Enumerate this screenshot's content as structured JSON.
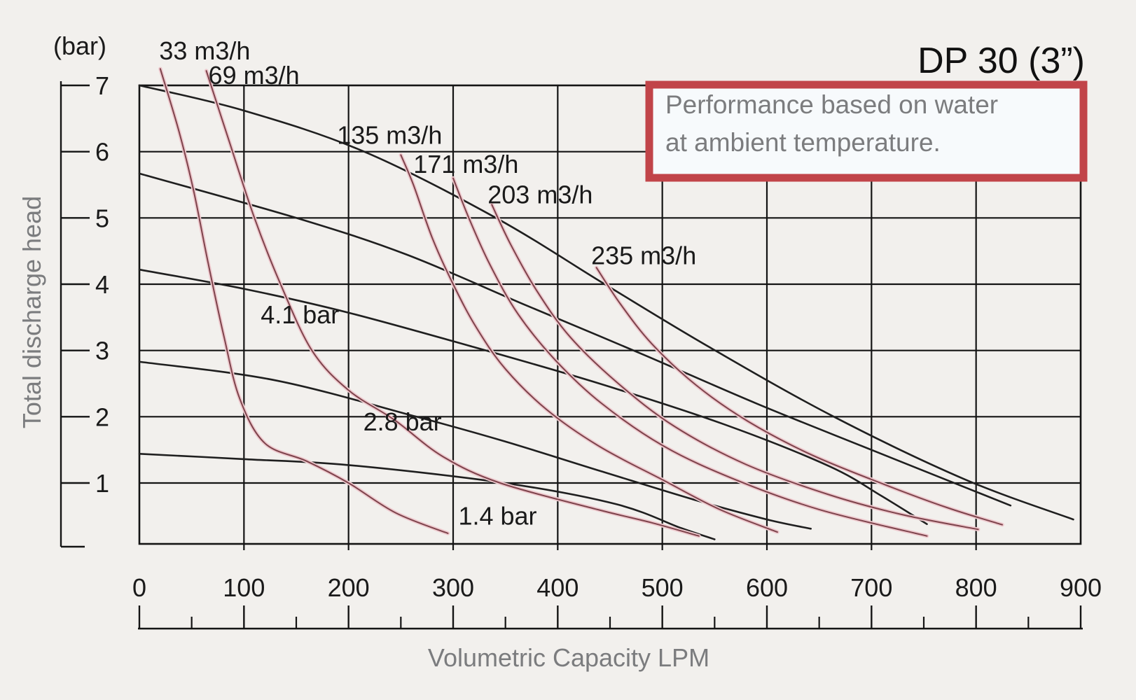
{
  "page": {
    "title": "DP 30 (3”)"
  },
  "note": {
    "lines": [
      "Performance based on water",
      "at ambient temperature."
    ]
  },
  "colors": {
    "background": "#f2f0ed",
    "grid": "#141414",
    "black_curve": "#1f1f1f",
    "red_curve_core": "#7d434b",
    "red_curve_halo": "#eec9ce",
    "note_border": "#c14449",
    "note_fill": "#f7fafc",
    "gray_text": "#7b7c7e",
    "label_text": "#1a1a1a"
  },
  "chart_data": {
    "type": "line",
    "title": "DP 30 (3”)",
    "xlabel": "Volumetric Capacity LPM",
    "ylabel": "Total discharge head",
    "y_unit_label": "(bar)",
    "xlim": [
      0,
      900
    ],
    "ylim": [
      0,
      7
    ],
    "grid": true,
    "x_ticks": [
      0,
      100,
      200,
      300,
      400,
      500,
      600,
      700,
      800,
      900
    ],
    "x_minor_ticks": [
      50,
      150,
      250,
      350,
      450,
      550,
      650,
      750,
      850
    ],
    "y_ticks": [
      1,
      2,
      3,
      4,
      5,
      6,
      7
    ],
    "series": [
      {
        "id": "pressure-6-9",
        "group": "air-inlet-pressure",
        "label": "",
        "color": "black",
        "points": [
          [
            0,
            7.0
          ],
          [
            100,
            6.62
          ],
          [
            215,
            6.0
          ],
          [
            341,
            5.0
          ],
          [
            445,
            4.0
          ],
          [
            545,
            3.05
          ],
          [
            664,
            2.0
          ],
          [
            790,
            1.05
          ],
          [
            893,
            0.45
          ]
        ]
      },
      {
        "id": "pressure-5-5",
        "group": "air-inlet-pressure",
        "label": "",
        "color": "black",
        "points": [
          [
            0,
            5.67
          ],
          [
            150,
            5.0
          ],
          [
            255,
            4.45
          ],
          [
            370,
            3.68
          ],
          [
            480,
            2.95
          ],
          [
            590,
            2.2
          ],
          [
            700,
            1.5
          ],
          [
            833,
            0.66
          ]
        ]
      },
      {
        "id": "pressure-4-1",
        "group": "air-inlet-pressure",
        "label": "4.1 bar",
        "color": "black",
        "points": [
          [
            0,
            4.22
          ],
          [
            100,
            3.93
          ],
          [
            200,
            3.57
          ],
          [
            320,
            3.05
          ],
          [
            440,
            2.5
          ],
          [
            560,
            1.88
          ],
          [
            660,
            1.25
          ],
          [
            710,
            0.8
          ],
          [
            753,
            0.38
          ]
        ]
      },
      {
        "id": "pressure-2-8",
        "group": "air-inlet-pressure",
        "label": "2.8 bar",
        "color": "black",
        "points": [
          [
            0,
            2.83
          ],
          [
            130,
            2.55
          ],
          [
            265,
            2.0
          ],
          [
            349,
            1.63
          ],
          [
            441,
            1.18
          ],
          [
            530,
            0.75
          ],
          [
            600,
            0.45
          ],
          [
            642,
            0.31
          ]
        ]
      },
      {
        "id": "pressure-1-4",
        "group": "air-inlet-pressure",
        "label": "1.4 bar",
        "color": "black",
        "points": [
          [
            0,
            1.44
          ],
          [
            100,
            1.36
          ],
          [
            200,
            1.27
          ],
          [
            349,
            1.0
          ],
          [
            456,
            0.68
          ],
          [
            518,
            0.32
          ],
          [
            550,
            0.15
          ]
        ]
      },
      {
        "id": "consumption-33",
        "group": "air-consumption",
        "label": "33 m3/h",
        "color": "red",
        "points": [
          [
            20,
            7.25
          ],
          [
            38,
            6.3
          ],
          [
            52,
            5.4
          ],
          [
            66,
            4.3
          ],
          [
            81,
            3.2
          ],
          [
            96,
            2.27
          ],
          [
            120,
            1.6
          ],
          [
            160,
            1.33
          ],
          [
            200,
            1.0
          ],
          [
            245,
            0.55
          ],
          [
            295,
            0.24
          ]
        ]
      },
      {
        "id": "consumption-69",
        "group": "air-consumption",
        "label": "69 m3/h",
        "color": "red",
        "points": [
          [
            64,
            7.22
          ],
          [
            85,
            6.2
          ],
          [
            110,
            5.0
          ],
          [
            135,
            4.0
          ],
          [
            165,
            3.0
          ],
          [
            200,
            2.4
          ],
          [
            244,
            1.95
          ],
          [
            290,
            1.4
          ],
          [
            345,
            1.0
          ],
          [
            438,
            0.6
          ],
          [
            490,
            0.4
          ],
          [
            535,
            0.2
          ]
        ]
      },
      {
        "id": "consumption-135",
        "group": "air-consumption",
        "label": "135 m3/h",
        "color": "red",
        "points": [
          [
            250,
            5.95
          ],
          [
            262,
            5.5
          ],
          [
            280,
            4.7
          ],
          [
            300,
            4.0
          ],
          [
            322,
            3.35
          ],
          [
            350,
            2.72
          ],
          [
            390,
            2.1
          ],
          [
            440,
            1.55
          ],
          [
            500,
            1.05
          ],
          [
            555,
            0.6
          ],
          [
            610,
            0.26
          ]
        ]
      },
      {
        "id": "consumption-171",
        "group": "air-consumption",
        "label": "171 m3/h",
        "color": "red",
        "points": [
          [
            300,
            5.6
          ],
          [
            315,
            5.0
          ],
          [
            335,
            4.3
          ],
          [
            362,
            3.55
          ],
          [
            398,
            2.85
          ],
          [
            442,
            2.2
          ],
          [
            502,
            1.55
          ],
          [
            570,
            1.05
          ],
          [
            650,
            0.6
          ],
          [
            753,
            0.2
          ]
        ]
      },
      {
        "id": "consumption-203",
        "group": "air-consumption",
        "label": "203 m3/h",
        "color": "red",
        "points": [
          [
            337,
            5.2
          ],
          [
            355,
            4.6
          ],
          [
            380,
            3.9
          ],
          [
            412,
            3.2
          ],
          [
            458,
            2.5
          ],
          [
            512,
            1.85
          ],
          [
            580,
            1.28
          ],
          [
            660,
            0.82
          ],
          [
            730,
            0.52
          ],
          [
            802,
            0.3
          ]
        ]
      },
      {
        "id": "consumption-235",
        "group": "air-consumption",
        "label": "235 m3/h",
        "color": "red",
        "points": [
          [
            437,
            4.25
          ],
          [
            460,
            3.7
          ],
          [
            490,
            3.1
          ],
          [
            532,
            2.48
          ],
          [
            582,
            1.93
          ],
          [
            642,
            1.43
          ],
          [
            712,
            0.98
          ],
          [
            772,
            0.63
          ],
          [
            825,
            0.37
          ]
        ]
      }
    ],
    "curve_labels": [
      {
        "series": "consumption-33",
        "x": 19,
        "y": 7.39
      },
      {
        "series": "consumption-69",
        "x": 66,
        "y": 7.02
      },
      {
        "series": "consumption-135",
        "x": 189,
        "y": 6.12
      },
      {
        "series": "consumption-171",
        "x": 262,
        "y": 5.68
      },
      {
        "series": "consumption-203",
        "x": 333,
        "y": 5.22
      },
      {
        "series": "consumption-235",
        "x": 432,
        "y": 4.3
      },
      {
        "series": "pressure-4-1",
        "x": 116,
        "y": 3.41
      },
      {
        "series": "pressure-2-8",
        "x": 214,
        "y": 1.79
      },
      {
        "series": "pressure-1-4",
        "x": 305,
        "y": 0.37
      }
    ],
    "legend_position": "none"
  }
}
